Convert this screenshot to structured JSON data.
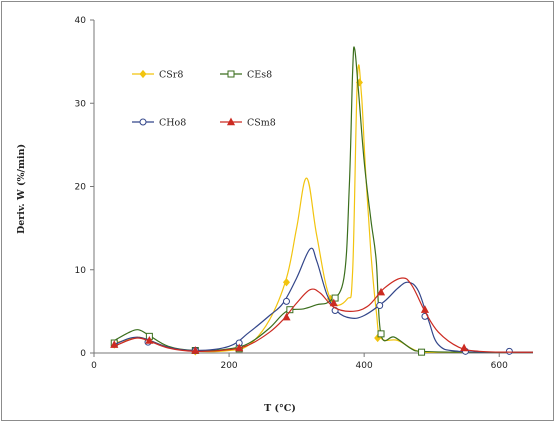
{
  "chart_data": {
    "type": "line",
    "title": "",
    "xlabel": "T (°C)",
    "ylabel": "Deriv. W (%/min)",
    "xlim": [
      0,
      650
    ],
    "ylim": [
      0,
      40
    ],
    "xticks": [
      0,
      200,
      400,
      600
    ],
    "yticks": [
      0,
      10,
      20,
      30,
      40
    ],
    "grid": false,
    "legend_placement": "upper-left, two columns",
    "series": [
      {
        "name": "CSr8",
        "color": "#f2c40f",
        "marker": "diamond",
        "x": [
          30,
          50,
          65,
          80,
          110,
          150,
          200,
          230,
          260,
          285,
          300,
          315,
          330,
          350,
          375,
          383,
          390,
          396,
          402,
          410,
          418,
          425,
          450,
          480,
          520,
          560,
          620,
          650
        ],
        "y": [
          1.2,
          1.6,
          1.9,
          1.6,
          0.7,
          0.2,
          0.3,
          1.0,
          4.0,
          9.0,
          15.0,
          21.0,
          14.0,
          6.5,
          6.5,
          10.0,
          33.0,
          31.0,
          22.0,
          12.0,
          5.0,
          1.8,
          1.5,
          0.2,
          0.1,
          0.1,
          0.1,
          0.1
        ],
        "markers_x": [
          30,
          80,
          150,
          215,
          285,
          350,
          393,
          420
        ],
        "markers_y": [
          1.0,
          1.5,
          0.2,
          0.6,
          8.5,
          6.5,
          32.5,
          1.8
        ]
      },
      {
        "name": "CEs8",
        "color": "#3b6e1d",
        "marker": "square",
        "x": [
          30,
          50,
          65,
          80,
          110,
          150,
          200,
          230,
          260,
          285,
          310,
          330,
          350,
          370,
          378,
          383,
          386,
          392,
          400,
          410,
          418,
          425,
          445,
          470,
          485,
          540,
          620,
          650
        ],
        "y": [
          1.5,
          2.4,
          2.8,
          2.2,
          0.8,
          0.3,
          0.5,
          1.2,
          3.0,
          5.0,
          5.3,
          5.8,
          6.3,
          9.0,
          20.0,
          34.0,
          36.5,
          31.0,
          23.0,
          16.0,
          11.0,
          2.2,
          1.9,
          0.5,
          0.2,
          0.1,
          0.1,
          0.1
        ],
        "markers_x": [
          30,
          82,
          150,
          215,
          290,
          357,
          425,
          485
        ],
        "markers_y": [
          1.2,
          2.0,
          0.3,
          0.5,
          5.2,
          6.6,
          2.3,
          0.1
        ]
      },
      {
        "name": "CHo8",
        "color": "#33468a",
        "marker": "circle",
        "x": [
          30,
          50,
          65,
          80,
          110,
          150,
          200,
          230,
          260,
          280,
          300,
          320,
          330,
          345,
          360,
          380,
          400,
          430,
          450,
          465,
          480,
          495,
          510,
          540,
          620,
          650
        ],
        "y": [
          1.0,
          1.7,
          1.9,
          1.6,
          0.7,
          0.3,
          0.8,
          2.5,
          4.5,
          6.0,
          9.0,
          12.5,
          11.0,
          7.0,
          5.0,
          4.2,
          4.5,
          6.2,
          7.8,
          8.5,
          7.5,
          4.0,
          1.0,
          0.2,
          0.1,
          0.1
        ],
        "markers_x": [
          80,
          150,
          215,
          285,
          357,
          423,
          490,
          550,
          615
        ],
        "markers_y": [
          1.3,
          0.3,
          1.2,
          6.2,
          5.1,
          5.7,
          4.4,
          0.2,
          0.2
        ]
      },
      {
        "name": "CSm8",
        "color": "#cc2b22",
        "marker": "triangle",
        "x": [
          30,
          50,
          65,
          80,
          110,
          150,
          200,
          230,
          260,
          280,
          300,
          320,
          335,
          355,
          380,
          405,
          430,
          455,
          470,
          490,
          510,
          540,
          570,
          620,
          650
        ],
        "y": [
          0.8,
          1.5,
          1.8,
          1.5,
          0.6,
          0.2,
          0.4,
          1.0,
          2.5,
          4.0,
          6.0,
          7.6,
          7.2,
          5.5,
          5.0,
          5.6,
          7.8,
          9.0,
          8.2,
          5.0,
          2.5,
          0.7,
          0.2,
          0.1,
          0.1
        ],
        "markers_x": [
          30,
          82,
          150,
          215,
          285,
          355,
          425,
          490,
          548
        ],
        "markers_y": [
          1.0,
          1.5,
          0.3,
          0.6,
          4.3,
          6.0,
          7.3,
          5.2,
          0.6
        ]
      }
    ]
  }
}
